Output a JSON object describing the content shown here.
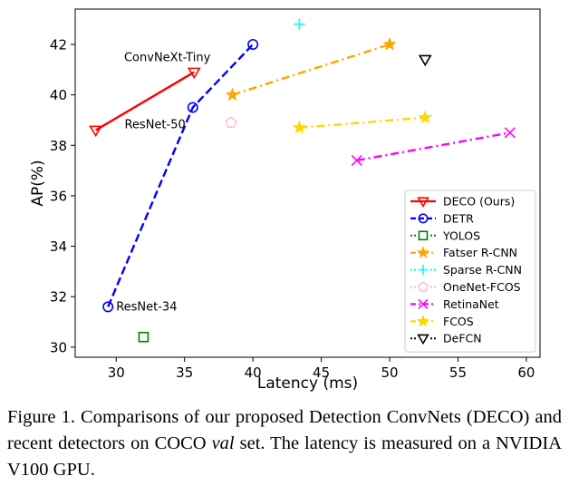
{
  "chart_data": {
    "type": "scatter",
    "title": "",
    "xlabel": "Latency (ms)",
    "ylabel": "AP(%)",
    "xlim": [
      27,
      61
    ],
    "ylim": [
      29.6,
      43.4
    ],
    "x_ticks": [
      30,
      35,
      40,
      45,
      50,
      55,
      60
    ],
    "y_ticks": [
      30,
      32,
      34,
      36,
      38,
      40,
      42
    ],
    "legend_position": "lower-right",
    "series": [
      {
        "name": "DECO (Ours)",
        "color": "#ff0000",
        "marker": "triangle-down",
        "line": "solid",
        "x": [
          28.5,
          35.7
        ],
        "y": [
          38.6,
          40.9
        ]
      },
      {
        "name": "DETR",
        "color": "#0000ff",
        "marker": "circle",
        "line": "dashed",
        "x": [
          29.4,
          35.6,
          40.0
        ],
        "y": [
          31.6,
          39.5,
          42.0
        ]
      },
      {
        "name": "YOLOS",
        "color": "#008000",
        "marker": "square",
        "line": "none",
        "x": [
          32.0
        ],
        "y": [
          30.4
        ]
      },
      {
        "name": "Fatser R-CNN",
        "color": "#ffa500",
        "marker": "star",
        "line": "dashdot",
        "x": [
          38.5,
          50.0
        ],
        "y": [
          40.0,
          42.0
        ]
      },
      {
        "name": "Sparse R-CNN",
        "color": "#00ffff",
        "marker": "plus",
        "line": "none",
        "x": [
          43.4
        ],
        "y": [
          42.8
        ]
      },
      {
        "name": "OneNet-FCOS",
        "color": "#ffb6c1",
        "marker": "pentagon",
        "line": "none",
        "x": [
          38.4
        ],
        "y": [
          38.9
        ]
      },
      {
        "name": "RetinaNet",
        "color": "#ff00ff",
        "marker": "x",
        "line": "dashdot",
        "x": [
          47.6,
          58.8
        ],
        "y": [
          37.4,
          38.5
        ]
      },
      {
        "name": "FCOS",
        "color": "#ffd700",
        "marker": "star",
        "line": "dashdot",
        "x": [
          43.4,
          52.6
        ],
        "y": [
          38.7,
          39.1
        ]
      },
      {
        "name": "DeFCN",
        "color": "#000000",
        "marker": "triangle-down",
        "line": "none",
        "x": [
          52.6
        ],
        "y": [
          41.4
        ]
      }
    ],
    "annotations": [
      {
        "text": "ConvNeXt-Tiny",
        "x": 35.7,
        "y": 40.9,
        "anchor": "upper-left-of-point"
      },
      {
        "text": "ResNet-50",
        "x": 35.6,
        "y": 39.5,
        "anchor": "lower-left-of-point"
      },
      {
        "text": "ResNet-34",
        "x": 29.4,
        "y": 31.6,
        "anchor": "right-of-point"
      }
    ]
  },
  "caption": {
    "prefix": "Figure 1.  Comparisons of our proposed Detection ConvNets (DECO) and recent detectors on COCO ",
    "italic": "val",
    "suffix": " set.  The latency is measured on a NVIDIA V100 GPU."
  }
}
